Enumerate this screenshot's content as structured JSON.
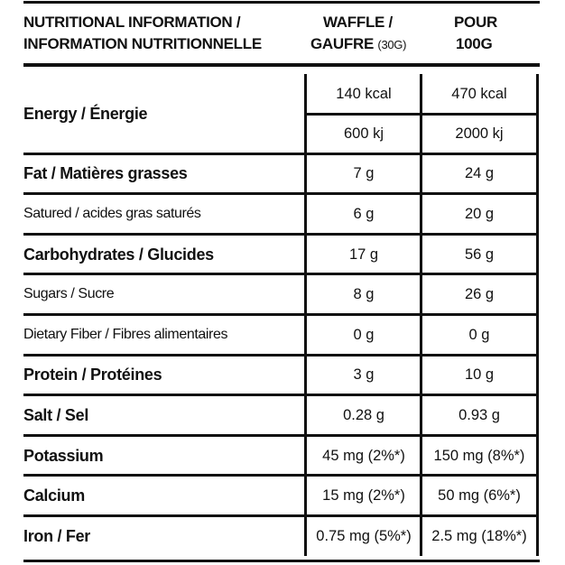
{
  "header": {
    "nutrient": [
      "NUTRITIONAL INFORMATION /",
      "INFORMATION NUTRITIONNELLE"
    ],
    "per_serving": [
      "WAFFLE /",
      "GAUFRE",
      "(30G)"
    ],
    "per_100g": [
      "POUR",
      "100G"
    ]
  },
  "rows": [
    {
      "label": "Energy / Énergie",
      "bold": true,
      "per_serving": [
        "140 kcal",
        "600 kj"
      ],
      "per_100g": [
        "470 kcal",
        "2000 kj"
      ]
    },
    {
      "label": "Fat / Matières grasses",
      "bold": true,
      "per_serving": "7 g",
      "per_100g": "24 g"
    },
    {
      "label": "Satured / acides gras saturés",
      "bold": false,
      "per_serving": "6 g",
      "per_100g": "20 g"
    },
    {
      "label": "Carbohydrates / Glucides",
      "bold": true,
      "per_serving": "17 g",
      "per_100g": "56 g"
    },
    {
      "label": "Sugars / Sucre",
      "bold": false,
      "per_serving": "8 g",
      "per_100g": "26 g"
    },
    {
      "label": "Dietary Fiber / Fibres alimentaires",
      "bold": false,
      "per_serving": "0 g",
      "per_100g": "0 g"
    },
    {
      "label": "Protein / Protéines",
      "bold": true,
      "per_serving": "3 g",
      "per_100g": "10 g"
    },
    {
      "label": "Salt / Sel",
      "bold": true,
      "per_serving": "0.28 g",
      "per_100g": "0.93 g"
    },
    {
      "label": "Potassium",
      "bold": true,
      "per_serving": "45 mg (2%*)",
      "per_100g": "150 mg (8%*)"
    },
    {
      "label": "Calcium",
      "bold": true,
      "per_serving": "15 mg (2%*)",
      "per_100g": "50 mg (6%*)"
    },
    {
      "label": "Iron / Fer",
      "bold": true,
      "per_serving": "0.75 mg (5%*)",
      "per_100g": "2.5 mg (18%*)"
    }
  ]
}
